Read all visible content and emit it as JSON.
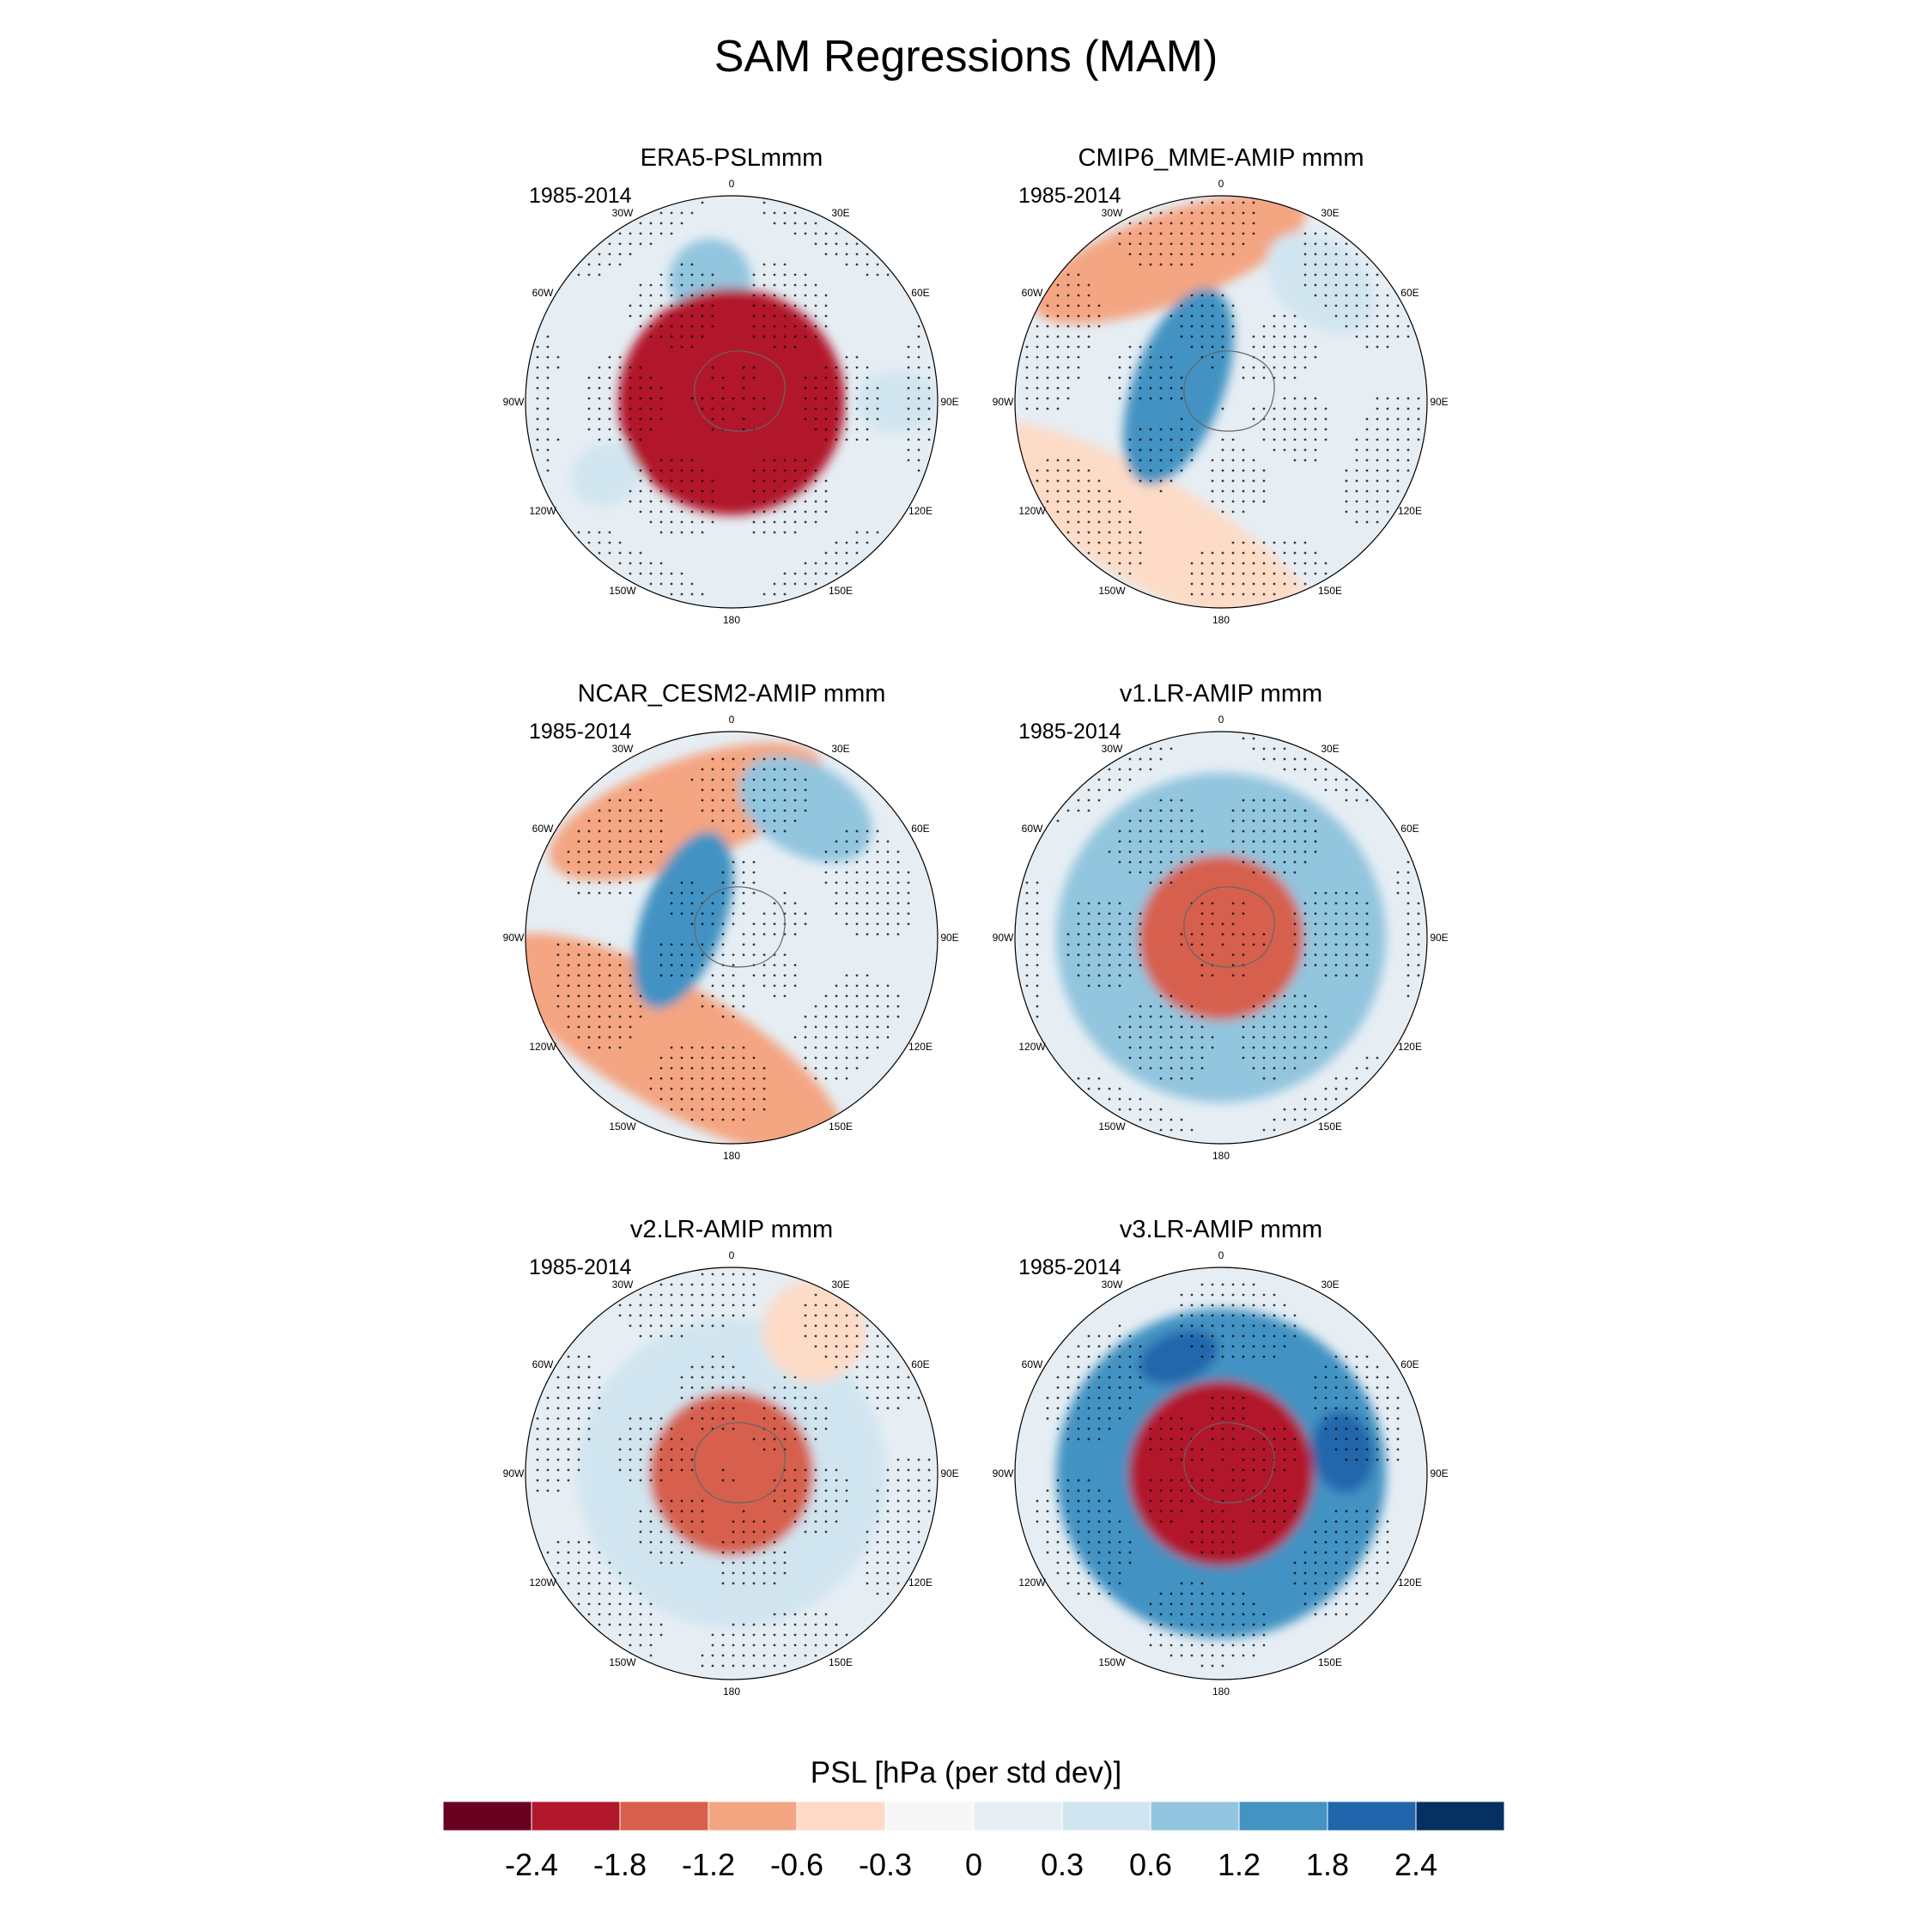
{
  "figure": {
    "title": "SAM Regressions (MAM)"
  },
  "lon_labels": [
    "0",
    "30E",
    "60E",
    "90E",
    "120E",
    "150E",
    "180",
    "150W",
    "120W",
    "90W",
    "60W",
    "30W"
  ],
  "colorbar": {
    "title": "PSL [hPa (per std dev)]",
    "colors": [
      "#67001f",
      "#b2182b",
      "#d6604d",
      "#f4a582",
      "#fddbc7",
      "#f7f7f7",
      "#e6eef4",
      "#d1e5f0",
      "#92c5de",
      "#4393c3",
      "#2166ac",
      "#053061"
    ],
    "tick_labels": [
      "-2.4",
      "-1.8",
      "-1.2",
      "-0.6",
      "-0.3",
      "0",
      "0.3",
      "0.6",
      "1.2",
      "1.8",
      "2.4"
    ]
  },
  "chart_data": {
    "type": "heatmap",
    "projection": "south-polar-stereographic",
    "title": "SAM Regressions (MAM)",
    "variable": "PSL [hPa (per std dev)]",
    "levels": [
      -2.4,
      -1.8,
      -1.2,
      -0.6,
      -0.3,
      0,
      0.3,
      0.6,
      1.2,
      1.8,
      2.4
    ],
    "stippling": "significant regions",
    "panels": [
      {
        "title": "ERA5-PSLmmm",
        "period": "1985-2014",
        "background": "#e6eef4",
        "blobs": [
          {
            "lon": 20,
            "r": 0.9,
            "rr": 0.22,
            "rt": 0.4,
            "value": 0.1
          },
          {
            "lon": 90,
            "r": 0.8,
            "rr": 0.2,
            "rt": 0.3,
            "value": 0.6
          },
          {
            "lon": 300,
            "r": 0.7,
            "rr": 0.18,
            "rt": 0.3,
            "value": 0.6
          },
          {
            "lon": 190,
            "r": 0.6,
            "rr": 0.2,
            "rt": 0.4,
            "value": 1.0
          },
          {
            "lon": 0,
            "r": 0.0,
            "rr": 0.55,
            "rt": 6.3,
            "value": -2.0
          }
        ]
      },
      {
        "title": "CMIP6_MME-AMIP  mmm",
        "period": "1985-2014",
        "background": "#e6eef4",
        "blobs": [
          {
            "lon": 330,
            "r": 0.72,
            "rr": 0.26,
            "rt": 1.9,
            "value": -0.5
          },
          {
            "lon": 200,
            "r": 0.74,
            "rr": 0.22,
            "rt": 1.4,
            "value": -0.8
          },
          {
            "lon": 250,
            "r": 0.22,
            "rr": 0.22,
            "rt": 1.0,
            "value": 1.4
          },
          {
            "lon": 140,
            "r": 0.75,
            "rr": 0.2,
            "rt": 0.6,
            "value": 0.6
          }
        ]
      },
      {
        "title": "NCAR_CESM2-AMIP  mmm",
        "period": "1985-2014",
        "background": "#e6eef4",
        "blobs": [
          {
            "lon": 330,
            "r": 0.6,
            "rr": 0.3,
            "rt": 1.9,
            "value": -0.6
          },
          {
            "lon": 200,
            "r": 0.65,
            "rr": 0.25,
            "rt": 1.4,
            "value": -0.8
          },
          {
            "lon": 250,
            "r": 0.25,
            "rr": 0.2,
            "rt": 0.9,
            "value": 1.4
          },
          {
            "lon": 150,
            "r": 0.72,
            "rr": 0.22,
            "rt": 0.7,
            "value": 0.7
          }
        ]
      },
      {
        "title": "v1.LR-AMIP  mmm",
        "period": "1985-2014",
        "background": "#e6eef4",
        "blobs": [
          {
            "lon": 0,
            "r": 0.0,
            "rr": 0.8,
            "rt": 6.3,
            "value": 0.9
          },
          {
            "lon": 0,
            "r": 0.0,
            "rr": 0.4,
            "rt": 6.3,
            "value": -1.6
          }
        ]
      },
      {
        "title": "v2.LR-AMIP  mmm",
        "period": "1985-2014",
        "background": "#e6eef4",
        "blobs": [
          {
            "lon": 0,
            "r": 0.0,
            "rr": 0.75,
            "rt": 6.3,
            "value": 0.6
          },
          {
            "lon": 0,
            "r": 0.0,
            "rr": 0.4,
            "rt": 6.3,
            "value": -1.5
          },
          {
            "lon": 150,
            "r": 0.8,
            "rr": 0.25,
            "rt": 0.5,
            "value": -0.5
          }
        ]
      },
      {
        "title": "v3.LR-AMIP  mmm",
        "period": "1985-2014",
        "background": "#e6eef4",
        "blobs": [
          {
            "lon": 0,
            "r": 0.0,
            "rr": 0.8,
            "rt": 6.3,
            "value": 1.4
          },
          {
            "lon": 0,
            "r": 0.0,
            "rr": 0.45,
            "rt": 6.3,
            "value": -2.3
          },
          {
            "lon": 100,
            "r": 0.6,
            "rr": 0.15,
            "rt": 0.4,
            "value": 2.2
          },
          {
            "lon": 200,
            "r": 0.6,
            "rr": 0.12,
            "rt": 0.4,
            "value": 2.3
          }
        ]
      }
    ]
  }
}
